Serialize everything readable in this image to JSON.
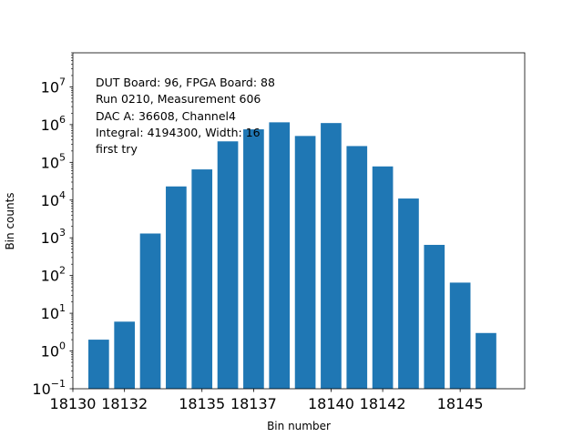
{
  "chart_data": {
    "type": "bar",
    "x": [
      18131,
      18132,
      18133,
      18134,
      18135,
      18136,
      18137,
      18138,
      18139,
      18140,
      18141,
      18142,
      18143,
      18144,
      18145,
      18146
    ],
    "values": [
      2,
      6,
      1300,
      23000,
      65000,
      360000,
      750000,
      1150000,
      500000,
      1100000,
      270000,
      78000,
      11000,
      650,
      65,
      3
    ],
    "xlabel": "Bin number",
    "ylabel": "Bin counts",
    "xlim": [
      18130,
      18147.5
    ],
    "ylog": true,
    "ylim": [
      0.1,
      80000000
    ],
    "xticks": [
      18130,
      18132,
      18135,
      18137,
      18140,
      18142,
      18145
    ],
    "ytick_exponents": [
      "−1",
      "0",
      "1",
      "2",
      "3",
      "4",
      "5",
      "6",
      "7"
    ],
    "bar_color": "#1f77b4",
    "annotations": [
      "DUT Board: 96, FPGA Board: 88",
      "Run 0210, Measurement 606",
      "DAC A: 36608, Channel4",
      "Integral: 4194300, Width: 16",
      "first try"
    ]
  }
}
